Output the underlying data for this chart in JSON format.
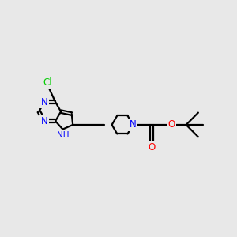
{
  "bg_color": "#e8e8e8",
  "atom_colors": {
    "N": "#0000ff",
    "O": "#ff0000",
    "Cl": "#00cc00"
  },
  "bond_color": "#000000",
  "bond_width": 1.6,
  "figsize": [
    3.0,
    3.0
  ],
  "dpi": 100
}
